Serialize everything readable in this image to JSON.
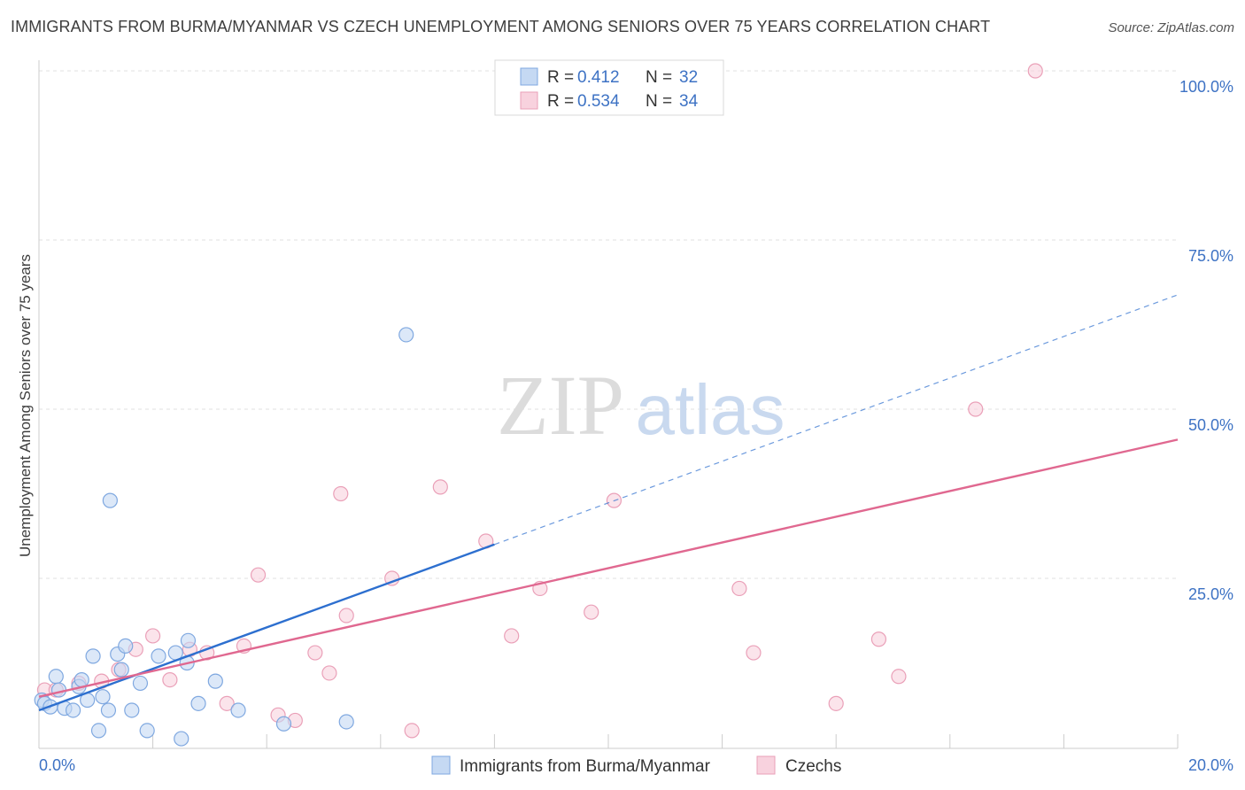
{
  "title": "IMMIGRANTS FROM BURMA/MYANMAR VS CZECH UNEMPLOYMENT AMONG SENIORS OVER 75 YEARS CORRELATION CHART",
  "source": "Source: ZipAtlas.com",
  "watermark": {
    "zip": "ZIP",
    "atlas": "atlas"
  },
  "chart_data": {
    "type": "scatter",
    "xlabel": "",
    "ylabel": "Unemployment Among Seniors over 75 years",
    "xlim": [
      0,
      20
    ],
    "ylim": [
      0,
      100
    ],
    "x_tick_labels": [
      "0.0%",
      "20.0%"
    ],
    "y_ticks": [
      25,
      50,
      75,
      100
    ],
    "y_tick_labels": [
      "25.0%",
      "50.0%",
      "75.0%",
      "100.0%"
    ],
    "legend": [
      {
        "r_label": "R =",
        "r_value": "0.412",
        "n_label": "N =",
        "n_value": "32"
      },
      {
        "r_label": "R =",
        "r_value": "0.534",
        "n_label": "N =",
        "n_value": "34"
      }
    ],
    "series": [
      {
        "name": "Immigrants from Burma/Myanmar",
        "color": "#7fa8e0",
        "fill": "#c5d9f3",
        "line_color": "#2d6fcf",
        "trend": {
          "x0": 0.0,
          "y0": 5.5,
          "x1": 8.0,
          "y1": 30.0,
          "dash_x1": 20.0,
          "dash_y1": 66.9
        },
        "points": [
          {
            "x": 0.05,
            "y": 7.0
          },
          {
            "x": 0.1,
            "y": 6.5
          },
          {
            "x": 0.2,
            "y": 6.0
          },
          {
            "x": 0.3,
            "y": 10.5
          },
          {
            "x": 0.35,
            "y": 8.5
          },
          {
            "x": 0.45,
            "y": 5.8
          },
          {
            "x": 0.6,
            "y": 5.5
          },
          {
            "x": 0.7,
            "y": 9.0
          },
          {
            "x": 0.75,
            "y": 10.0
          },
          {
            "x": 0.85,
            "y": 7.0
          },
          {
            "x": 0.95,
            "y": 13.5
          },
          {
            "x": 1.05,
            "y": 2.5
          },
          {
            "x": 1.12,
            "y": 7.5
          },
          {
            "x": 1.22,
            "y": 5.5
          },
          {
            "x": 1.25,
            "y": 36.5
          },
          {
            "x": 1.38,
            "y": 13.8
          },
          {
            "x": 1.45,
            "y": 11.5
          },
          {
            "x": 1.52,
            "y": 15.0
          },
          {
            "x": 1.63,
            "y": 5.5
          },
          {
            "x": 1.78,
            "y": 9.5
          },
          {
            "x": 1.9,
            "y": 2.5
          },
          {
            "x": 2.1,
            "y": 13.5
          },
          {
            "x": 2.4,
            "y": 14.0
          },
          {
            "x": 2.5,
            "y": 1.3
          },
          {
            "x": 2.6,
            "y": 12.5
          },
          {
            "x": 2.62,
            "y": 15.8
          },
          {
            "x": 2.8,
            "y": 6.5
          },
          {
            "x": 3.1,
            "y": 9.8
          },
          {
            "x": 3.5,
            "y": 5.5
          },
          {
            "x": 4.3,
            "y": 3.5
          },
          {
            "x": 5.4,
            "y": 3.8
          },
          {
            "x": 6.45,
            "y": 61.0
          }
        ]
      },
      {
        "name": "Czechs",
        "color": "#eaa0b8",
        "fill": "#f8d2de",
        "line_color": "#e06890",
        "trend": {
          "x0": 0.0,
          "y0": 7.5,
          "x1": 20.0,
          "y1": 45.5
        },
        "points": [
          {
            "x": 0.1,
            "y": 8.5
          },
          {
            "x": 0.3,
            "y": 8.5
          },
          {
            "x": 0.7,
            "y": 9.5
          },
          {
            "x": 1.1,
            "y": 9.8
          },
          {
            "x": 1.4,
            "y": 11.5
          },
          {
            "x": 1.7,
            "y": 14.5
          },
          {
            "x": 2.0,
            "y": 16.5
          },
          {
            "x": 2.3,
            "y": 10.0
          },
          {
            "x": 2.65,
            "y": 14.5
          },
          {
            "x": 2.95,
            "y": 14.0
          },
          {
            "x": 3.3,
            "y": 6.5
          },
          {
            "x": 3.6,
            "y": 15.0
          },
          {
            "x": 3.85,
            "y": 25.5
          },
          {
            "x": 4.2,
            "y": 4.8
          },
          {
            "x": 4.5,
            "y": 4.0
          },
          {
            "x": 4.85,
            "y": 14.0
          },
          {
            "x": 5.1,
            "y": 11.0
          },
          {
            "x": 5.3,
            "y": 37.5
          },
          {
            "x": 5.4,
            "y": 19.5
          },
          {
            "x": 6.2,
            "y": 25.0
          },
          {
            "x": 6.55,
            "y": 2.5
          },
          {
            "x": 7.05,
            "y": 38.5
          },
          {
            "x": 7.85,
            "y": 30.5
          },
          {
            "x": 8.3,
            "y": 16.5
          },
          {
            "x": 8.8,
            "y": 23.5
          },
          {
            "x": 9.7,
            "y": 20.0
          },
          {
            "x": 10.1,
            "y": 36.5
          },
          {
            "x": 12.3,
            "y": 23.5
          },
          {
            "x": 12.55,
            "y": 14.0
          },
          {
            "x": 14.0,
            "y": 6.5
          },
          {
            "x": 14.75,
            "y": 16.0
          },
          {
            "x": 15.1,
            "y": 10.5
          },
          {
            "x": 16.45,
            "y": 50.0
          },
          {
            "x": 17.5,
            "y": 100.0
          }
        ]
      }
    ]
  }
}
